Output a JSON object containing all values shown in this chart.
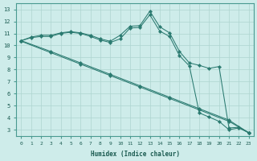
{
  "xlabel": "Humidex (Indice chaleur)",
  "bg_color": "#ceecea",
  "grid_color": "#aed4d0",
  "line_color": "#2a7a70",
  "xlim": [
    -0.5,
    23.5
  ],
  "ylim": [
    2.5,
    13.5
  ],
  "xticks": [
    0,
    1,
    2,
    3,
    4,
    5,
    6,
    7,
    8,
    9,
    10,
    11,
    12,
    13,
    14,
    15,
    16,
    17,
    18,
    19,
    20,
    21,
    22,
    23
  ],
  "yticks": [
    3,
    4,
    5,
    6,
    7,
    8,
    9,
    10,
    11,
    12,
    13
  ],
  "series": [
    {
      "x": [
        0,
        1,
        2,
        3,
        4,
        5,
        6,
        7,
        8,
        9,
        10,
        11,
        12,
        13,
        14,
        15,
        16,
        17,
        18,
        19,
        20,
        21,
        22,
        23
      ],
      "y": [
        10.4,
        10.7,
        10.85,
        10.85,
        11.05,
        11.15,
        11.05,
        10.85,
        10.55,
        10.35,
        10.85,
        11.6,
        11.65,
        12.85,
        11.55,
        11.05,
        9.5,
        8.55,
        8.35,
        8.1,
        8.25,
        3.15,
        3.2,
        2.75
      ],
      "marker": "D",
      "markersize": 2.2
    },
    {
      "x": [
        0,
        1,
        2,
        3,
        4,
        5,
        6,
        7,
        8,
        9,
        10,
        11,
        12,
        13,
        14,
        15,
        16,
        17,
        18,
        19,
        20,
        21,
        22,
        23
      ],
      "y": [
        10.4,
        10.65,
        10.75,
        10.75,
        11.0,
        11.1,
        11.0,
        10.75,
        10.45,
        10.25,
        10.55,
        11.45,
        11.5,
        12.55,
        11.2,
        10.75,
        9.15,
        8.3,
        4.4,
        4.05,
        3.7,
        3.0,
        3.15,
        2.75
      ],
      "marker": "D",
      "markersize": 2.2
    },
    {
      "x": [
        0,
        3,
        6,
        9,
        12,
        15,
        18,
        21,
        23
      ],
      "y": [
        10.4,
        9.5,
        8.55,
        7.6,
        6.65,
        5.7,
        4.75,
        3.8,
        2.75
      ],
      "marker": "D",
      "markersize": 2.2
    },
    {
      "x": [
        0,
        3,
        6,
        9,
        12,
        15,
        18,
        21,
        23
      ],
      "y": [
        10.35,
        9.4,
        8.45,
        7.5,
        6.55,
        5.6,
        4.65,
        3.7,
        2.75
      ],
      "marker": "D",
      "markersize": 2.2
    }
  ]
}
